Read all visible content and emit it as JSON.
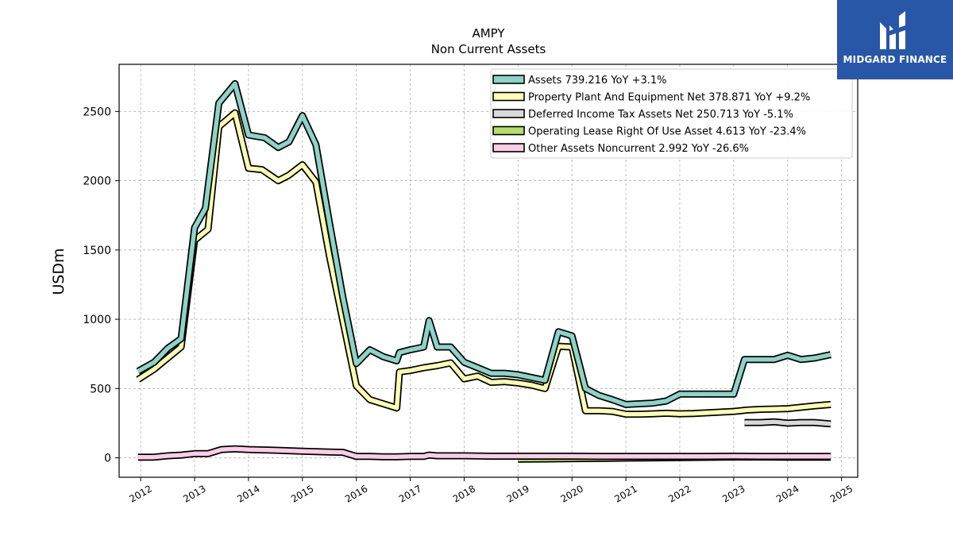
{
  "brand": {
    "name": "MIDGARD FINANCE",
    "color": "#2857a8"
  },
  "chart_data": {
    "type": "line",
    "title": "AMPY",
    "subtitle": "Non Current  Assets",
    "ylabel": "USDm",
    "xlabel": "",
    "xlim": [
      2011.6,
      2025.3
    ],
    "ylim": [
      -140,
      2840
    ],
    "grid": true,
    "legend_position": "top-right",
    "x_ticks": [
      2012,
      2013,
      2014,
      2015,
      2016,
      2017,
      2018,
      2019,
      2020,
      2021,
      2022,
      2023,
      2024,
      2025
    ],
    "y_ticks": [
      0,
      500,
      1000,
      1500,
      2000,
      2500
    ],
    "series": [
      {
        "name": "Assets",
        "legend": "Assets  739.216 YoY +3.1%",
        "color": "#8dd3c7",
        "x": [
          2011.95,
          2012.25,
          2012.5,
          2012.75,
          2013.0,
          2013.2,
          2013.45,
          2013.75,
          2014.0,
          2014.3,
          2014.55,
          2014.75,
          2015.0,
          2015.25,
          2015.5,
          2015.75,
          2016.0,
          2016.25,
          2016.5,
          2016.75,
          2016.8,
          2017.0,
          2017.25,
          2017.35,
          2017.5,
          2017.75,
          2018.0,
          2018.25,
          2018.5,
          2018.75,
          2019.0,
          2019.25,
          2019.5,
          2019.75,
          2020.0,
          2020.25,
          2020.5,
          2020.75,
          2021.0,
          2021.25,
          2021.5,
          2021.75,
          2022.0,
          2022.25,
          2022.5,
          2022.75,
          2023.0,
          2023.2,
          2023.5,
          2023.75,
          2024.0,
          2024.25,
          2024.5,
          2024.8
        ],
        "y": [
          625,
          690,
          790,
          860,
          1660,
          1800,
          2560,
          2700,
          2330,
          2310,
          2240,
          2280,
          2470,
          2260,
          1700,
          1160,
          680,
          780,
          730,
          700,
          760,
          780,
          800,
          990,
          800,
          800,
          690,
          650,
          610,
          610,
          600,
          580,
          560,
          910,
          880,
          500,
          450,
          420,
          385,
          390,
          395,
          410,
          460,
          460,
          460,
          460,
          460,
          710,
          710,
          710,
          740,
          710,
          720,
          745
        ]
      },
      {
        "name": "Property Plant And Equipment Net",
        "legend": "Property Plant And Equipment Net  378.871 YoY +9.2%",
        "color": "#ffffb3",
        "x": [
          2011.95,
          2012.25,
          2012.5,
          2012.75,
          2013.0,
          2013.25,
          2013.45,
          2013.75,
          2014.0,
          2014.25,
          2014.55,
          2014.75,
          2015.0,
          2015.25,
          2015.5,
          2015.75,
          2016.0,
          2016.25,
          2016.5,
          2016.75,
          2016.8,
          2017.0,
          2017.25,
          2017.5,
          2017.75,
          2018.0,
          2018.25,
          2018.5,
          2018.75,
          2019.0,
          2019.25,
          2019.5,
          2019.75,
          2020.0,
          2020.25,
          2020.5,
          2020.75,
          2021.0,
          2021.25,
          2021.5,
          2021.75,
          2022.0,
          2022.25,
          2022.5,
          2022.75,
          2023.0,
          2023.25,
          2023.5,
          2023.75,
          2024.0,
          2024.25,
          2024.5,
          2024.8
        ],
        "y": [
          565,
          640,
          720,
          800,
          1570,
          1650,
          2390,
          2490,
          2090,
          2080,
          2000,
          2040,
          2115,
          1990,
          1460,
          990,
          520,
          420,
          390,
          360,
          620,
          630,
          650,
          665,
          685,
          570,
          590,
          545,
          550,
          540,
          525,
          500,
          805,
          800,
          340,
          340,
          335,
          315,
          315,
          318,
          322,
          318,
          320,
          325,
          330,
          335,
          345,
          350,
          352,
          355,
          365,
          375,
          385
        ]
      },
      {
        "name": "Deferred Income Tax Assets Net",
        "legend": "Deferred Income Tax Assets Net  250.713 YoY -5.1%",
        "color": "#d9d9d9",
        "x": [
          2023.2,
          2023.5,
          2023.75,
          2024.0,
          2024.25,
          2024.5,
          2024.8
        ],
        "y": [
          255,
          255,
          260,
          250,
          255,
          255,
          245
        ]
      },
      {
        "name": "Operating Lease Right Of Use Asset",
        "legend": "Operating Lease Right Of Use Asset  4.613 YoY -23.4%",
        "color": "#b3de69",
        "x": [
          2019.0,
          2019.5,
          2020.0,
          2020.5,
          2021.0,
          2021.5,
          2022.0,
          2022.5,
          2023.0,
          2023.5,
          2024.0,
          2024.5,
          2024.8
        ],
        "y": [
          -10,
          -8,
          -6,
          -4,
          -2,
          0,
          2,
          4,
          6,
          6,
          5,
          5,
          5
        ]
      },
      {
        "name": "Other Assets Noncurrent",
        "legend": "Other Assets Noncurrent  2.992 YoY -26.6%",
        "color": "#fccde5",
        "x": [
          2011.95,
          2012.25,
          2012.5,
          2012.75,
          2013.0,
          2013.25,
          2013.5,
          2013.75,
          2014.0,
          2014.5,
          2015.0,
          2015.5,
          2015.75,
          2016.0,
          2016.25,
          2016.5,
          2016.75,
          2017.0,
          2017.25,
          2017.35,
          2017.5,
          2017.75,
          2018.0,
          2018.5,
          2019.0,
          2019.5,
          2020.0,
          2020.5,
          2021.0,
          2021.5,
          2022.0,
          2022.5,
          2023.0,
          2023.5,
          2024.0,
          2024.5,
          2024.8
        ],
        "y": [
          5,
          5,
          15,
          20,
          30,
          30,
          60,
          65,
          60,
          55,
          48,
          42,
          40,
          10,
          10,
          8,
          8,
          10,
          10,
          20,
          15,
          15,
          15,
          12,
          12,
          12,
          12,
          10,
          10,
          10,
          10,
          10,
          12,
          10,
          10,
          10,
          10
        ]
      }
    ]
  }
}
